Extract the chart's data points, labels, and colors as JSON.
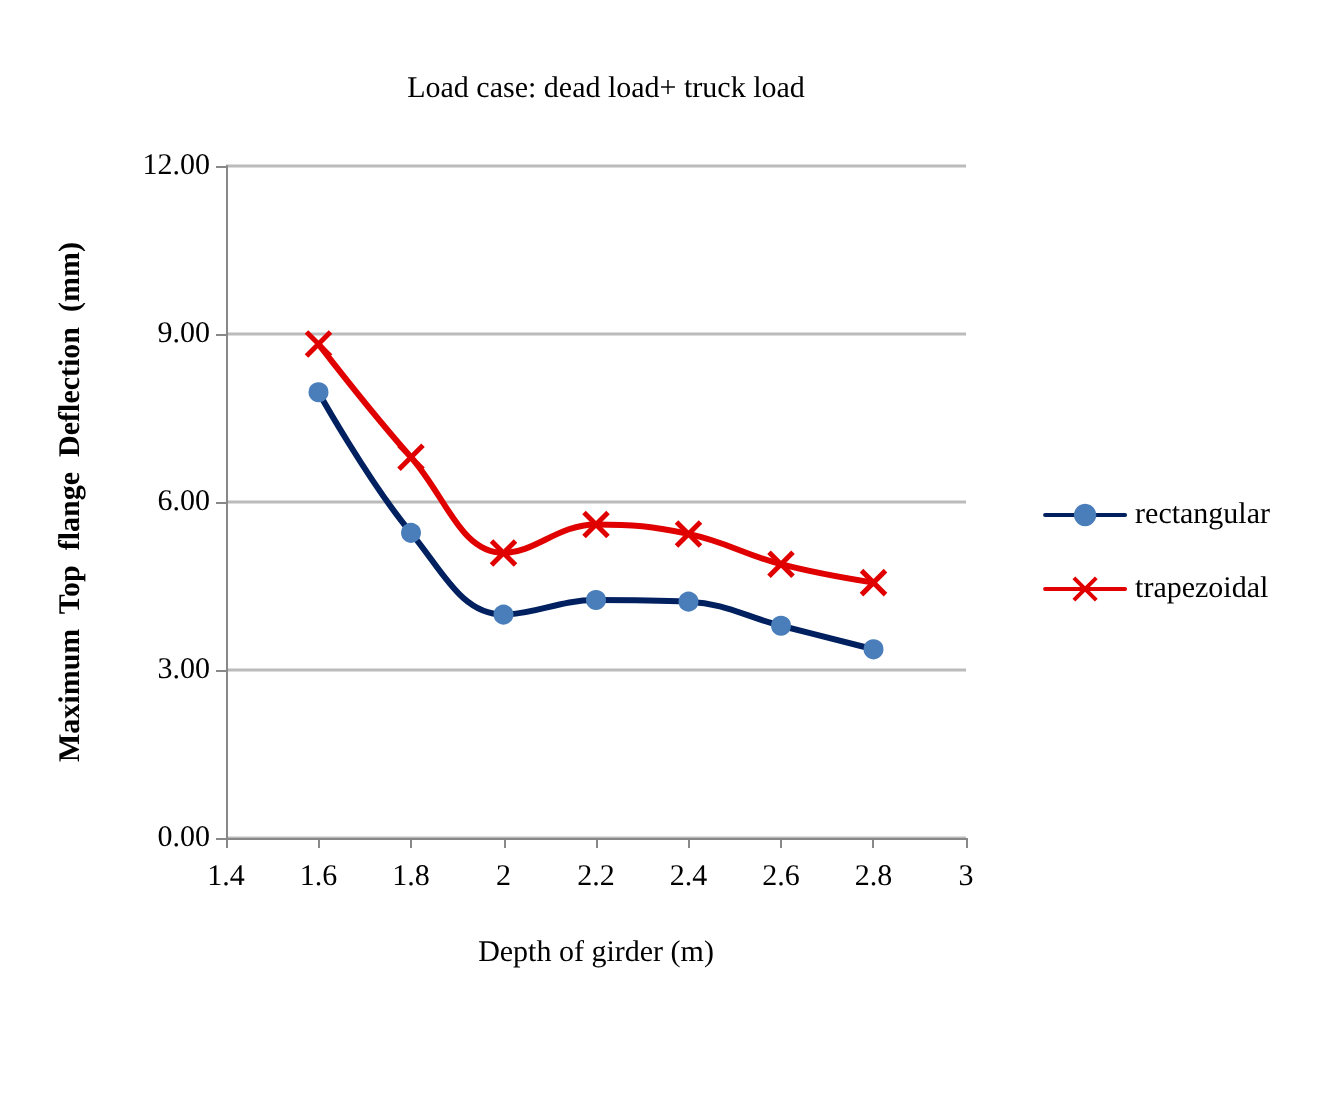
{
  "chart_data": {
    "type": "line",
    "title": "Load case: dead load+ truck load",
    "xlabel": "Depth of girder (m)",
    "ylabel": "Maximum  Top  flange  Deflection  (mm)",
    "x": [
      1.6,
      1.8,
      2.0,
      2.2,
      2.4,
      2.6,
      2.8
    ],
    "series": [
      {
        "name": "rectangular",
        "color": "#002060",
        "marker": "circle",
        "values": [
          7.96,
          5.45,
          3.99,
          4.25,
          4.22,
          3.79,
          3.37
        ]
      },
      {
        "name": "trapezoidal",
        "color": "#e00000",
        "marker": "cross",
        "values": [
          8.82,
          6.8,
          5.09,
          5.6,
          5.43,
          4.89,
          4.56
        ]
      }
    ],
    "xlim": [
      1.4,
      3
    ],
    "xticks": [
      1.4,
      1.6,
      1.8,
      2,
      2.2,
      2.4,
      2.6,
      2.8,
      3
    ],
    "ylim": [
      0,
      12
    ],
    "yticks": [
      {
        "value": 0,
        "label": "0.00"
      },
      {
        "value": 3,
        "label": "3.00"
      },
      {
        "value": 6,
        "label": "6.00"
      },
      {
        "value": 9,
        "label": "9.00"
      },
      {
        "value": 12,
        "label": "12.00"
      }
    ],
    "grid": "y",
    "legend": "right",
    "line_style": "solid"
  }
}
